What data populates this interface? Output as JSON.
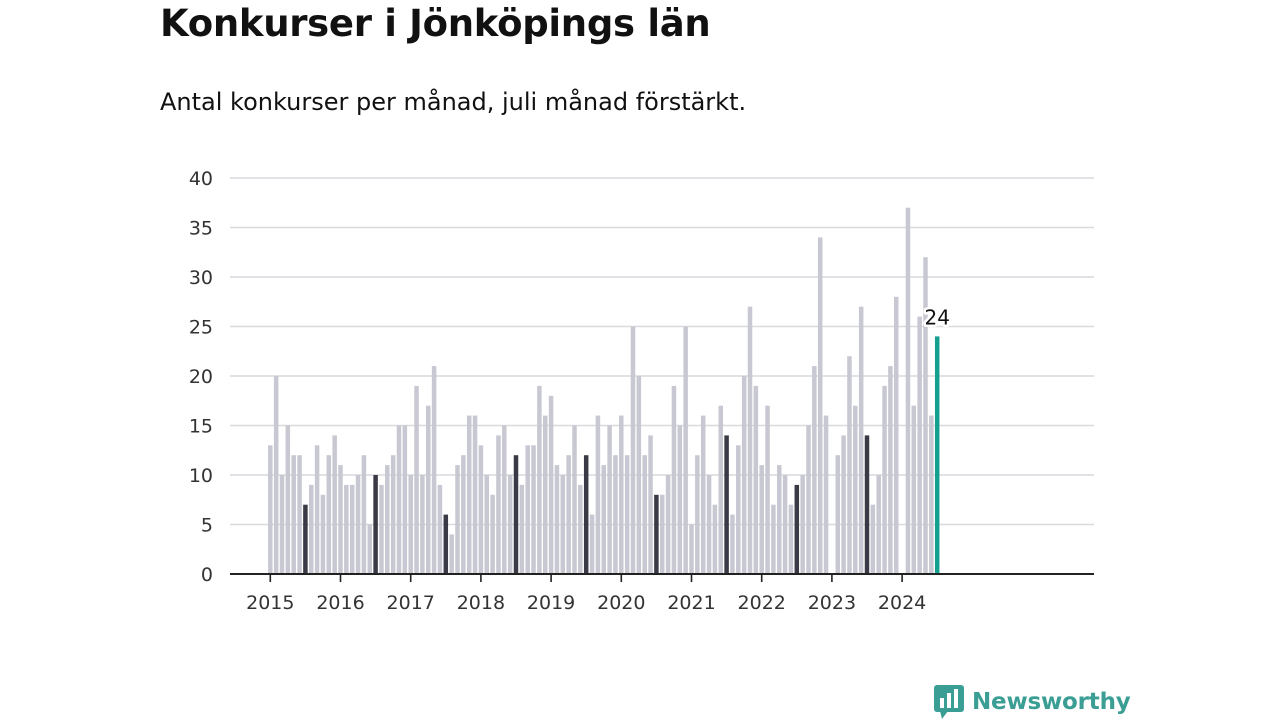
{
  "title": "Konkurser i Jönköpings län",
  "subtitle": "Antal konkurser per månad, juli månad förstärkt.",
  "brand": {
    "label": "Newsworthy",
    "icon": "newsworthy-logo-icon",
    "color": "#3a9e94"
  },
  "colors": {
    "bar": "#c8c8d2",
    "highlight_july": "#3a3a46",
    "latest": "#13a08f",
    "grid": "#d9d9de",
    "axis": "#222222",
    "text": "#333333"
  },
  "chart_data": {
    "type": "bar",
    "title": "Konkurser i Jönköpings län",
    "subtitle": "Antal konkurser per månad, juli månad förstärkt.",
    "ylim": [
      0,
      40
    ],
    "y_ticks": [
      0,
      5,
      10,
      15,
      20,
      25,
      30,
      35,
      40
    ],
    "grid": true,
    "start": "2015-01",
    "x_tick_labels": [
      "2015",
      "2016",
      "2017",
      "2018",
      "2019",
      "2020",
      "2021",
      "2022",
      "2023",
      "2024"
    ],
    "highlight_month": "juli",
    "latest_label": "24",
    "series": [
      {
        "values": [
          13,
          20,
          10,
          15,
          12,
          12,
          7,
          9,
          13,
          8,
          12,
          14,
          11,
          9,
          9,
          10,
          12,
          5,
          10,
          9,
          11,
          12,
          15,
          15,
          10,
          19,
          10,
          17,
          21,
          9,
          6,
          4,
          11,
          12,
          16,
          16,
          13,
          10,
          8,
          14,
          15,
          10,
          12,
          9,
          13,
          13,
          19,
          16,
          18,
          11,
          10,
          12,
          15,
          9,
          12,
          6,
          16,
          11,
          15,
          12,
          16,
          12,
          25,
          20,
          12,
          14,
          8,
          8,
          10,
          19,
          15,
          25,
          5,
          12,
          16,
          10,
          7,
          17,
          14,
          6,
          13,
          20,
          27,
          19,
          11,
          17,
          7,
          11,
          10,
          7,
          9,
          10,
          15,
          21,
          34,
          16,
          null,
          12,
          14,
          22,
          17,
          27,
          14,
          7,
          10,
          19,
          21,
          28,
          null,
          37,
          17,
          26,
          32,
          16,
          24
        ]
      }
    ]
  }
}
